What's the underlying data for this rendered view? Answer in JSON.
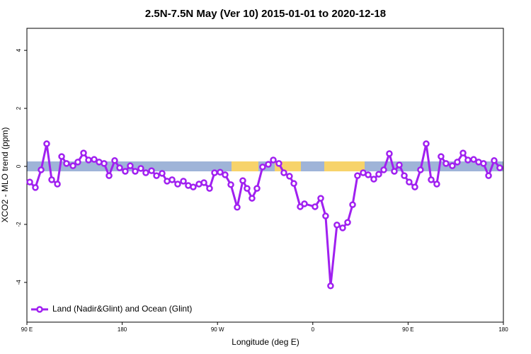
{
  "chart_data": {
    "type": "line",
    "title": "2.5N-7.5N May (Ver 10)   2015-01-01 to 2020-12-18",
    "x_label": "Longitude (deg E)",
    "y_label": "XCO2 - MLO trend (ppm)",
    "x": [
      92.7,
      98.0,
      103.4,
      108.7,
      113.4,
      118.8,
      122.8,
      127.4,
      133.5,
      138.1,
      143.5,
      148.2,
      153.5,
      158.2,
      162.9,
      167.6,
      172.9,
      177.6,
      182.9,
      187.6,
      192.3,
      197.6,
      202.3,
      207.7,
      212.4,
      217.7,
      222.4,
      227.1,
      232.4,
      237.8,
      242.4,
      247.1,
      252.5,
      257.2,
      262.5,
      267.2,
      272.5,
      277.2,
      282.6,
      288.6,
      293.9,
      297.9,
      302.6,
      307.3,
      312.6,
      318.0,
      322.7,
      328.0,
      332.7,
      338.0,
      342.1,
      348.1,
      352.1,
      362.1,
      367.5,
      372.1,
      376.8,
      382.8,
      388.2,
      392.9,
      397.6,
      402.2,
      407.6,
      412.3,
      417.6,
      422.3,
      427.0,
      432.3,
      437.0,
      441.7,
      446.4,
      451.0,
      456.4,
      461.7,
      467.1,
      471.8,
      477.1,
      481.1,
      485.8,
      491.8,
      496.5,
      501.9,
      506.5,
      511.9,
      516.6,
      521.2,
      526.0,
      531.3,
      536.6
    ],
    "series": [
      {
        "name": "Land (Nadir&Glint) and Ocean (Glint)",
        "color": "#a020f0",
        "values": [
          -0.54,
          -0.73,
          -0.12,
          0.78,
          -0.46,
          -0.61,
          0.34,
          0.1,
          0.02,
          0.15,
          0.46,
          0.22,
          0.24,
          0.15,
          0.1,
          -0.32,
          0.2,
          -0.05,
          -0.17,
          0.02,
          -0.17,
          -0.07,
          -0.22,
          -0.15,
          -0.32,
          -0.24,
          -0.51,
          -0.46,
          -0.61,
          -0.51,
          -0.66,
          -0.71,
          -0.61,
          -0.56,
          -0.76,
          -0.22,
          -0.2,
          -0.29,
          -0.63,
          -1.41,
          -0.49,
          -0.76,
          -1.1,
          -0.76,
          -0.02,
          0.07,
          0.22,
          0.1,
          -0.22,
          -0.34,
          -0.59,
          -1.39,
          -1.29,
          -1.39,
          -1.1,
          -1.71,
          -4.12,
          -2.02,
          -2.12,
          -1.93,
          -1.32,
          -0.32,
          -0.22,
          -0.29,
          -0.44,
          -0.27,
          -0.12,
          0.44,
          -0.17,
          0.05,
          -0.32,
          -0.54,
          -0.71,
          -0.12,
          0.78,
          -0.46,
          -0.61,
          0.34,
          0.1,
          0.02,
          0.15,
          0.46,
          0.22,
          0.24,
          0.15,
          0.1,
          -0.32,
          0.2,
          -0.05
        ]
      }
    ],
    "xlim": [
      90,
      540
    ],
    "xticks": [
      {
        "value": 90,
        "label": "90 E"
      },
      180,
      {
        "value": 270,
        "label": "90 W"
      },
      {
        "value": 360,
        "label": "0"
      },
      {
        "value": 450,
        "label": "90 E"
      },
      {
        "value": 540,
        "label": "180"
      }
    ],
    "ylim": [
      -5.37,
      4.76
    ],
    "yticks": [
      -4,
      -2,
      0,
      2,
      4
    ],
    "legend": "bottom-left"
  }
}
